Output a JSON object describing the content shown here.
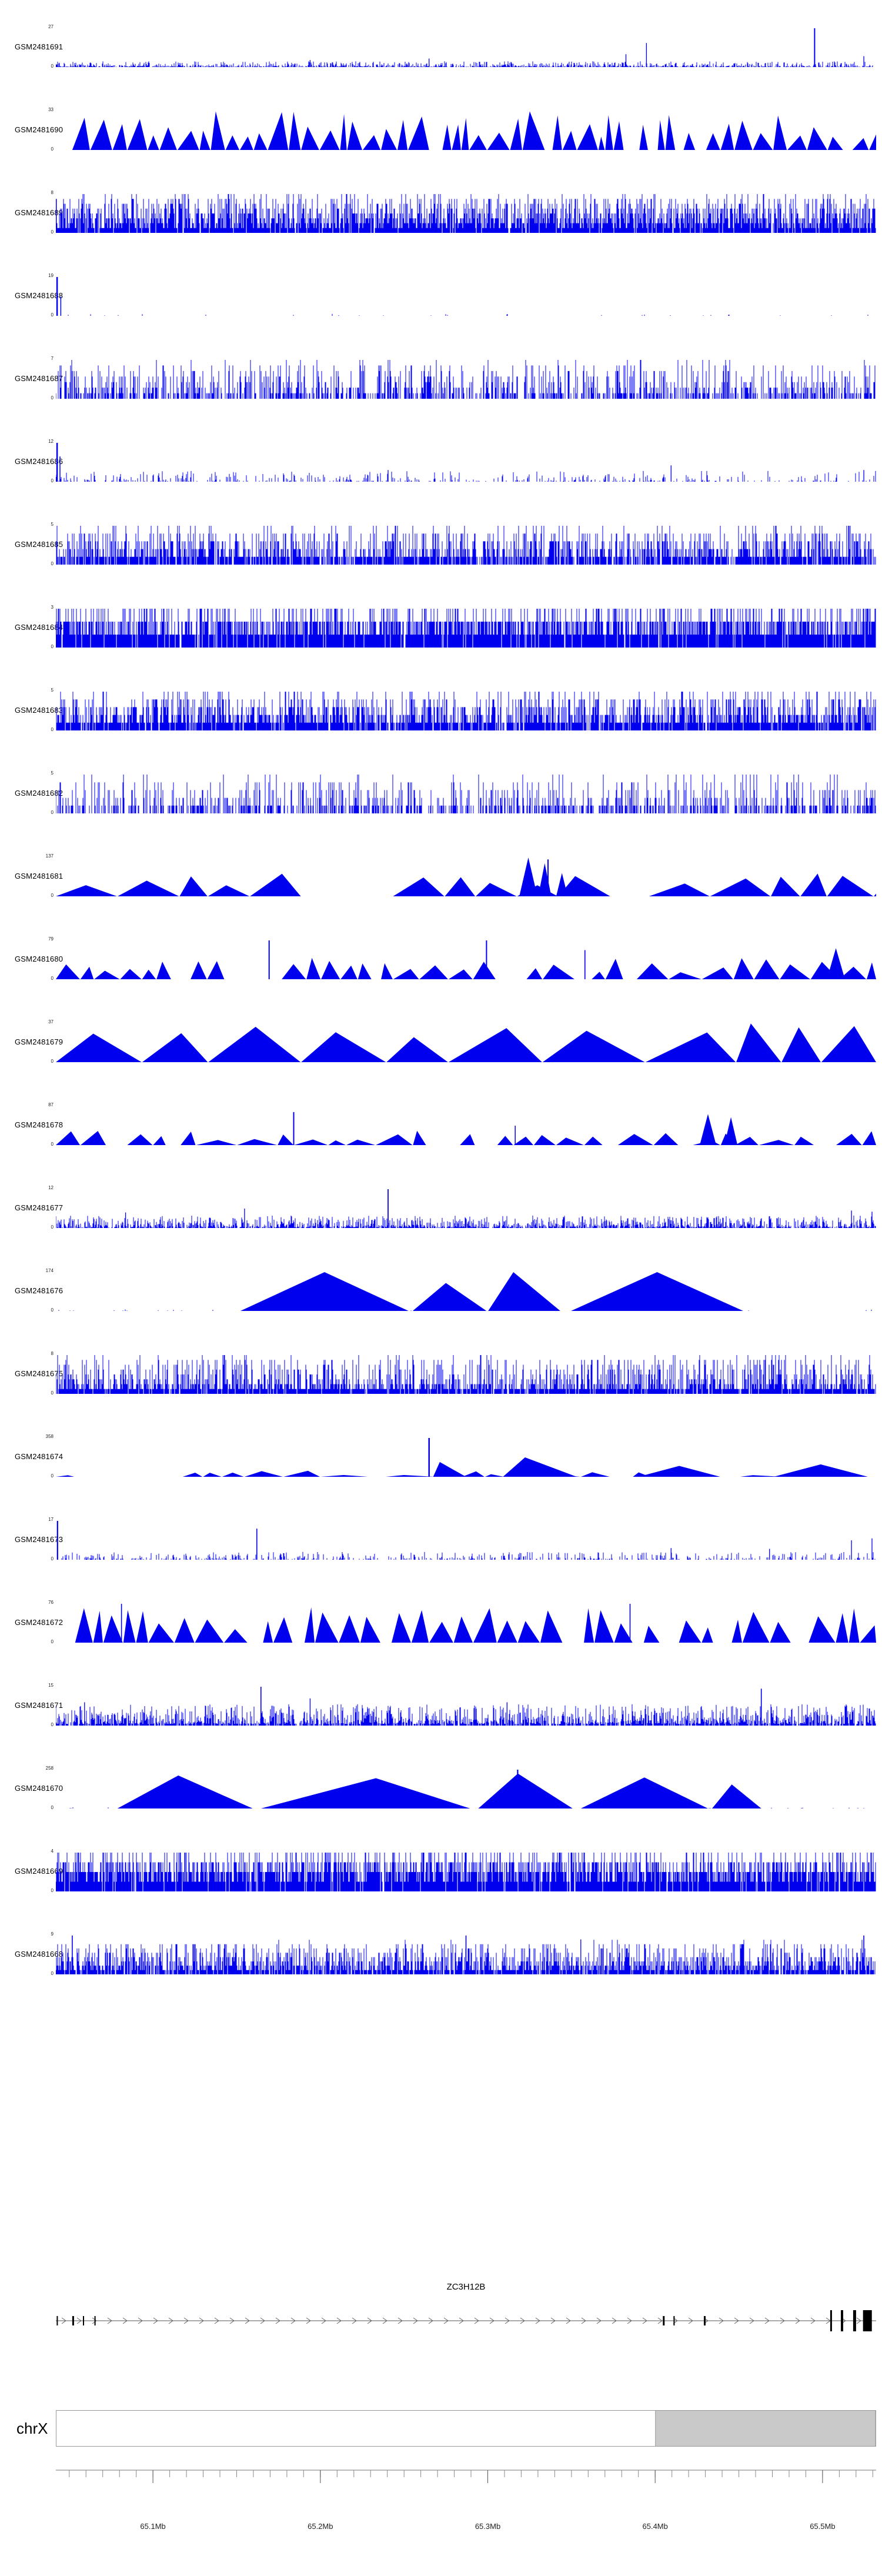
{
  "chart_data": {
    "type": "area",
    "subtype": "genome-browser-coverage-tracks",
    "signal_color": "#0000ee",
    "ybase_label": "0",
    "region": {
      "chromosome_label": "chrX",
      "start_mb": 65.042,
      "end_mb": 65.532,
      "minor_tick_step_mb": 0.01,
      "major_ticks": [
        {
          "mb": 65.1,
          "label": "65.1Mb"
        },
        {
          "mb": 65.2,
          "label": "65.2Mb"
        },
        {
          "mb": 65.3,
          "label": "65.3Mb"
        },
        {
          "mb": 65.4,
          "label": "65.4Mb"
        },
        {
          "mb": 65.5,
          "label": "65.5Mb"
        }
      ]
    },
    "tracks": [
      {
        "label": "GSM2481691",
        "ymax": 27,
        "seed": 101,
        "signal": {
          "background": {
            "type": "bars",
            "density": 0.7,
            "hmin": 0.01,
            "hmax": 0.15,
            "pow": 2.4
          },
          "features": [
            {
              "t": "spike",
              "x": 0.925,
              "h": 1.0,
              "w": 2
            },
            {
              "t": "spike",
              "x": 0.72,
              "h": 0.62
            },
            {
              "t": "spike",
              "x": 0.695,
              "h": 0.33
            },
            {
              "t": "spike",
              "x": 0.455,
              "h": 0.22
            },
            {
              "t": "spike",
              "x": 0.985,
              "h": 0.28
            },
            {
              "t": "spike",
              "x": 0.31,
              "h": 0.18
            }
          ]
        }
      },
      {
        "label": "GSM2481690",
        "ymax": 33,
        "seed": 102,
        "signal": {
          "background": {
            "type": "triangles",
            "start": 0.02,
            "end": 1.0,
            "wmin": 0.007,
            "wmax": 0.028,
            "hmin": 0.3,
            "hmax": 1.0,
            "gap": 0.12
          }
        }
      },
      {
        "label": "GSM2481689",
        "ymax": 8,
        "seed": 103,
        "signal": {
          "background": {
            "type": "bars",
            "density": 0.93,
            "hmin": 0.1,
            "hmax": 1.0,
            "pow": 1.4,
            "quant": 8
          }
        }
      },
      {
        "label": "GSM2481688",
        "ymax": 19,
        "seed": 104,
        "signal": {
          "background": {
            "type": "bars",
            "density": 0.02,
            "hmin": 0.01,
            "hmax": 0.05,
            "pow": 2
          },
          "features": [
            {
              "t": "spike",
              "x": 0.0015,
              "h": 1.0,
              "w": 2.5
            },
            {
              "t": "spike",
              "x": 0.006,
              "h": 0.5,
              "w": 1.5
            }
          ]
        }
      },
      {
        "label": "GSM2481687",
        "ymax": 7,
        "seed": 105,
        "signal": {
          "background": {
            "type": "bars",
            "density": 0.55,
            "hmin": 0.12,
            "hmax": 1.0,
            "pow": 2.0,
            "quant": 7
          }
        }
      },
      {
        "label": "GSM2481686",
        "ymax": 12,
        "seed": 106,
        "signal": {
          "background": {
            "type": "bars",
            "density": 0.28,
            "hmin": 0.02,
            "hmax": 0.28,
            "pow": 2.2
          },
          "features": [
            {
              "t": "spike",
              "x": 0.0015,
              "h": 1.0,
              "w": 2.5
            },
            {
              "t": "spike",
              "x": 0.005,
              "h": 0.65,
              "w": 1.5
            },
            {
              "t": "spike",
              "x": 0.405,
              "h": 0.3
            },
            {
              "t": "spike",
              "x": 0.75,
              "h": 0.42
            },
            {
              "t": "spike",
              "x": 0.985,
              "h": 0.3
            }
          ]
        }
      },
      {
        "label": "GSM2481685",
        "ymax": 5,
        "seed": 107,
        "signal": {
          "background": {
            "type": "bars",
            "density": 0.82,
            "hmin": 0.15,
            "hmax": 1.0,
            "pow": 1.8,
            "quant": 5
          }
        }
      },
      {
        "label": "GSM2481684",
        "ymax": 3,
        "seed": 108,
        "signal": {
          "background": {
            "type": "bars",
            "density": 0.92,
            "hmin": 0.3,
            "hmax": 1.0,
            "pow": 1.2,
            "quant": 3
          }
        }
      },
      {
        "label": "GSM2481683",
        "ymax": 5,
        "seed": 109,
        "signal": {
          "background": {
            "type": "bars",
            "density": 0.86,
            "hmin": 0.15,
            "hmax": 1.0,
            "pow": 1.7,
            "quant": 5
          }
        }
      },
      {
        "label": "GSM2481682",
        "ymax": 5,
        "seed": 110,
        "signal": {
          "background": {
            "type": "bars",
            "density": 0.5,
            "hmin": 0.15,
            "hmax": 1.0,
            "pow": 2.3,
            "quant": 5
          }
        }
      },
      {
        "label": "GSM2481681",
        "ymax": 137,
        "seed": 111,
        "signal": {
          "background": {
            "type": "triangles",
            "wmin": 0.025,
            "wmax": 0.075,
            "hmin": 0.25,
            "hmax": 0.62,
            "gap": 0.18
          },
          "features": [
            {
              "t": "tri",
              "x": 0.565,
              "w": 0.022,
              "h": 1.0
            },
            {
              "t": "tri",
              "x": 0.588,
              "w": 0.016,
              "h": 0.85
            },
            {
              "t": "spike",
              "x": 0.6,
              "h": 0.95,
              "w": 2
            },
            {
              "t": "tri",
              "x": 0.61,
              "w": 0.014,
              "h": 0.6
            }
          ]
        }
      },
      {
        "label": "GSM2481680",
        "ymax": 79,
        "seed": 112,
        "signal": {
          "background": {
            "type": "triangles",
            "wmin": 0.012,
            "wmax": 0.04,
            "hmin": 0.18,
            "hmax": 0.55,
            "gap": 0.2
          },
          "features": [
            {
              "t": "spike",
              "x": 0.26,
              "h": 1.0,
              "w": 2
            },
            {
              "t": "spike",
              "x": 0.525,
              "h": 1.0,
              "w": 2
            },
            {
              "t": "tri",
              "x": 0.94,
              "w": 0.022,
              "h": 0.8
            },
            {
              "t": "spike",
              "x": 0.645,
              "h": 0.75,
              "w": 1.6
            }
          ]
        }
      },
      {
        "label": "GSM2481679",
        "ymax": 37,
        "seed": 113,
        "signal": {
          "background": {
            "type": "triangles",
            "wmin": 0.04,
            "wmax": 0.13,
            "hmin": 0.5,
            "hmax": 1.0,
            "gap": 0.1
          }
        }
      },
      {
        "label": "GSM2481678",
        "ymax": 87,
        "seed": 114,
        "signal": {
          "background": {
            "type": "triangles",
            "wmin": 0.013,
            "wmax": 0.05,
            "hmin": 0.12,
            "hmax": 0.42,
            "gap": 0.25
          },
          "features": [
            {
              "t": "spike",
              "x": 0.29,
              "h": 0.85,
              "w": 2
            },
            {
              "t": "tri",
              "x": 0.785,
              "w": 0.02,
              "h": 0.8
            },
            {
              "t": "tri",
              "x": 0.815,
              "w": 0.016,
              "h": 0.72
            },
            {
              "t": "spike",
              "x": 0.56,
              "h": 0.5,
              "w": 1.5
            }
          ]
        }
      },
      {
        "label": "GSM2481677",
        "ymax": 12,
        "seed": 115,
        "signal": {
          "background": {
            "type": "bars",
            "density": 0.75,
            "hmin": 0.02,
            "hmax": 0.32,
            "pow": 2.2
          },
          "features": [
            {
              "t": "spike",
              "x": 0.405,
              "h": 1.0,
              "w": 1.8
            },
            {
              "t": "spike",
              "x": 0.23,
              "h": 0.5
            },
            {
              "t": "spike",
              "x": 0.085,
              "h": 0.4
            },
            {
              "t": "spike",
              "x": 0.97,
              "h": 0.45
            },
            {
              "t": "spike",
              "x": 0.995,
              "h": 0.42
            }
          ]
        }
      },
      {
        "label": "GSM2481676",
        "ymax": 174,
        "seed": 116,
        "signal": {
          "background": {
            "type": "bars",
            "density": 0.03,
            "hmin": 0.01,
            "hmax": 0.04,
            "pow": 2
          },
          "features": [
            {
              "t": "tri",
              "x": 0.225,
              "w": 0.205,
              "h": 1.0,
              "apex": 0.5
            },
            {
              "t": "tri",
              "x": 0.435,
              "w": 0.09,
              "h": 0.72,
              "apex": 0.45
            },
            {
              "t": "tri",
              "x": 0.527,
              "w": 0.088,
              "h": 1.0,
              "apex": 0.35
            },
            {
              "t": "tri",
              "x": 0.628,
              "w": 0.21,
              "h": 1.0,
              "apex": 0.5
            }
          ]
        }
      },
      {
        "label": "GSM2481675",
        "ymax": 8,
        "seed": 117,
        "signal": {
          "background": {
            "type": "bars",
            "density": 0.9,
            "hmin": 0.1,
            "hmax": 1.0,
            "pow": 2.5,
            "quant": 8
          }
        }
      },
      {
        "label": "GSM2481674",
        "ymax": 358,
        "seed": 118,
        "signal": {
          "background": {
            "type": "triangles",
            "wmin": 0.02,
            "wmax": 0.06,
            "hmin": 0.04,
            "hmax": 0.16,
            "gap": 0.3
          },
          "features": [
            {
              "t": "spike",
              "x": 0.455,
              "h": 1.0,
              "w": 2.5
            },
            {
              "t": "tri",
              "x": 0.46,
              "w": 0.04,
              "h": 0.38,
              "apex": 0.2
            },
            {
              "t": "tri",
              "x": 0.545,
              "w": 0.09,
              "h": 0.5,
              "apex": 0.3
            },
            {
              "t": "tri",
              "x": 0.71,
              "w": 0.1,
              "h": 0.28
            },
            {
              "t": "tri",
              "x": 0.875,
              "w": 0.115,
              "h": 0.32
            }
          ]
        }
      },
      {
        "label": "GSM2481673",
        "ymax": 17,
        "seed": 119,
        "signal": {
          "background": {
            "type": "bars",
            "density": 0.3,
            "hmin": 0.02,
            "hmax": 0.2,
            "pow": 2.1
          },
          "features": [
            {
              "t": "spike",
              "x": 0.002,
              "h": 1.0,
              "w": 2.2
            },
            {
              "t": "spike",
              "x": 0.245,
              "h": 0.8,
              "w": 1.6
            },
            {
              "t": "spike",
              "x": 0.75,
              "h": 0.3
            },
            {
              "t": "spike",
              "x": 0.87,
              "h": 0.28
            },
            {
              "t": "spike",
              "x": 0.97,
              "h": 0.5
            },
            {
              "t": "spike",
              "x": 0.995,
              "h": 0.55
            }
          ]
        }
      },
      {
        "label": "GSM2481672",
        "ymax": 76,
        "seed": 120,
        "signal": {
          "background": {
            "type": "triangles",
            "wmin": 0.01,
            "wmax": 0.035,
            "hmin": 0.3,
            "hmax": 0.92,
            "gap": 0.12
          },
          "features": [
            {
              "t": "spike",
              "x": 0.08,
              "h": 1.0,
              "w": 1.6
            },
            {
              "t": "spike",
              "x": 0.7,
              "h": 1.0,
              "w": 1.6
            }
          ]
        }
      },
      {
        "label": "GSM2481671",
        "ymax": 15,
        "seed": 121,
        "signal": {
          "background": {
            "type": "bars",
            "density": 0.82,
            "hmin": 0.04,
            "hmax": 0.55,
            "pow": 2.2
          },
          "features": [
            {
              "t": "spike",
              "x": 0.035,
              "h": 0.6
            },
            {
              "t": "spike",
              "x": 0.25,
              "h": 1.0,
              "w": 1.6
            },
            {
              "t": "spike",
              "x": 0.31,
              "h": 0.7
            },
            {
              "t": "spike",
              "x": 0.55,
              "h": 0.6
            },
            {
              "t": "spike",
              "x": 0.86,
              "h": 0.95,
              "w": 1.6
            }
          ]
        }
      },
      {
        "label": "GSM2481670",
        "ymax": 258,
        "seed": 122,
        "signal": {
          "background": {
            "type": "bars",
            "density": 0.04,
            "hmin": 0.01,
            "hmax": 0.03,
            "pow": 2
          },
          "features": [
            {
              "t": "tri",
              "x": 0.075,
              "w": 0.165,
              "h": 0.85,
              "apex": 0.45
            },
            {
              "t": "tri",
              "x": 0.25,
              "w": 0.255,
              "h": 0.78,
              "apex": 0.55
            },
            {
              "t": "tri",
              "x": 0.515,
              "w": 0.115,
              "h": 0.9,
              "apex": 0.42
            },
            {
              "t": "spike",
              "x": 0.563,
              "h": 1.0,
              "w": 2.2
            },
            {
              "t": "tri",
              "x": 0.64,
              "w": 0.155,
              "h": 0.8,
              "apex": 0.5
            },
            {
              "t": "tri",
              "x": 0.8,
              "w": 0.06,
              "h": 0.62,
              "apex": 0.4
            }
          ]
        }
      },
      {
        "label": "GSM2481669",
        "ymax": 4,
        "seed": 123,
        "signal": {
          "background": {
            "type": "bars",
            "density": 0.93,
            "hmin": 0.25,
            "hmax": 1.0,
            "pow": 1.15,
            "quant": 4
          }
        }
      },
      {
        "label": "GSM2481668",
        "ymax": 9,
        "seed": 124,
        "signal": {
          "background": {
            "type": "bars",
            "density": 0.86,
            "hmin": 0.1,
            "hmax": 0.85,
            "pow": 1.9,
            "quant": 9
          },
          "features": [
            {
              "t": "spike",
              "x": 0.02,
              "h": 1.0,
              "w": 1.6
            },
            {
              "t": "spike",
              "x": 0.5,
              "h": 1.0,
              "w": 1.6
            },
            {
              "t": "spike",
              "x": 0.64,
              "h": 0.9
            },
            {
              "t": "spike",
              "x": 0.985,
              "h": 1.0,
              "w": 1.6
            }
          ]
        }
      }
    ],
    "gene_track": {
      "name": "ZC3H12B",
      "strand": "+",
      "exons": [
        {
          "x": 0.001,
          "w": 2,
          "tall": false
        },
        {
          "x": 0.02,
          "w": 3,
          "tall": false
        },
        {
          "x": 0.033,
          "w": 2,
          "tall": false
        },
        {
          "x": 0.047,
          "w": 2,
          "tall": false
        },
        {
          "x": 0.74,
          "w": 3,
          "tall": false
        },
        {
          "x": 0.753,
          "w": 2,
          "tall": false
        },
        {
          "x": 0.79,
          "w": 3,
          "tall": false
        },
        {
          "x": 0.944,
          "w": 3,
          "tall": true
        },
        {
          "x": 0.957,
          "w": 4,
          "tall": true
        },
        {
          "x": 0.972,
          "w": 5,
          "tall": true
        },
        {
          "x": 0.984,
          "w": 15,
          "tall": true
        }
      ]
    },
    "ideogram": {
      "label": "chrX",
      "fill": "#ffffff",
      "shade_color": "#c9c9c9",
      "border_color": "#9a9a9a",
      "shaded_region": {
        "start_frac": 0.731,
        "end_frac": 1.0
      }
    }
  }
}
